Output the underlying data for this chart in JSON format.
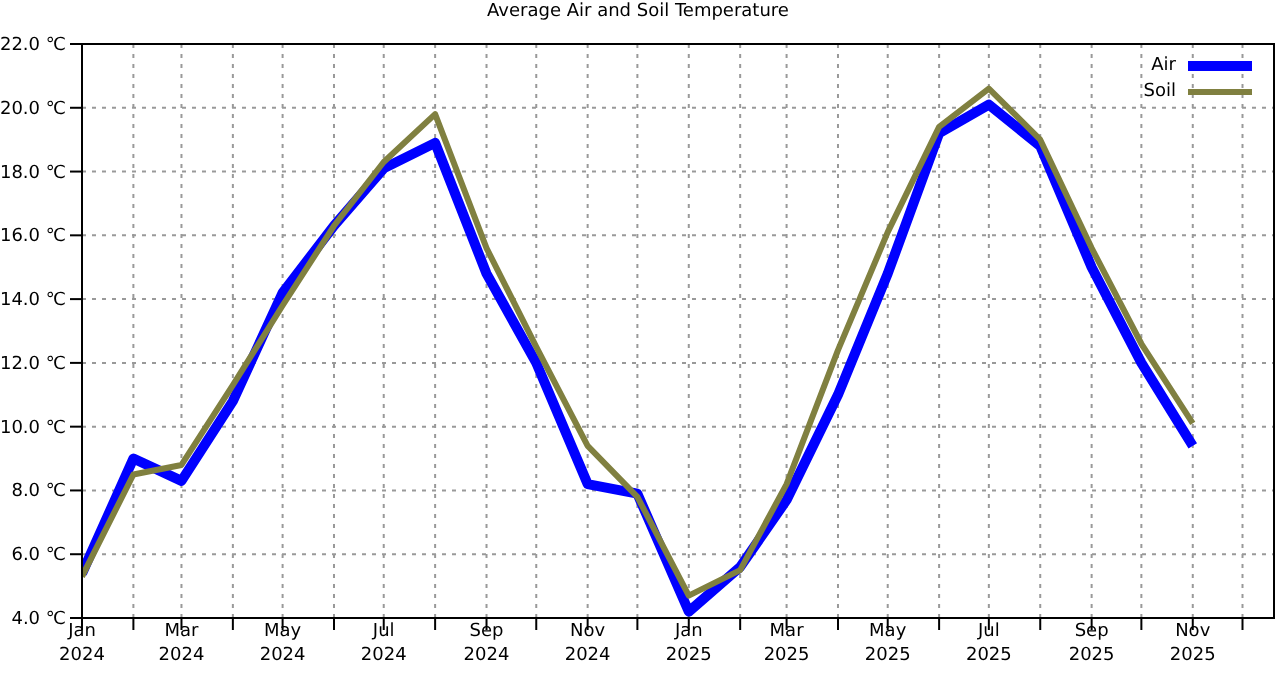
{
  "chart_data": {
    "type": "line",
    "title": "Average Air and Soil Temperature",
    "x": [
      "2024-01",
      "2024-02",
      "2024-03",
      "2024-04",
      "2024-05",
      "2024-06",
      "2024-07",
      "2024-08",
      "2024-09",
      "2024-10",
      "2024-11",
      "2024-12",
      "2025-01",
      "2025-02",
      "2025-03",
      "2025-04",
      "2025-05",
      "2025-06",
      "2025-07",
      "2025-08",
      "2025-09",
      "2025-10",
      "2025-11"
    ],
    "series": [
      {
        "name": "Air",
        "color": "#0000ff",
        "values": [
          5.4,
          9.0,
          8.3,
          10.8,
          14.2,
          16.3,
          18.1,
          18.9,
          14.8,
          12.0,
          8.2,
          7.9,
          4.2,
          5.6,
          7.7,
          11.0,
          14.8,
          19.2,
          20.1,
          18.8,
          15.0,
          12.0,
          9.4
        ]
      },
      {
        "name": "Soil",
        "color": "#808040",
        "values": [
          5.3,
          8.5,
          8.8,
          11.3,
          13.8,
          16.3,
          18.3,
          19.8,
          15.6,
          12.5,
          9.4,
          7.8,
          4.7,
          5.5,
          8.2,
          12.4,
          16.1,
          19.4,
          20.6,
          19.0,
          15.6,
          12.6,
          10.1
        ]
      }
    ],
    "xlim": [
      "2024-01-01",
      "2025-12-20"
    ],
    "xticks": [
      {
        "value": "2024-01",
        "label": "Jan\n2024"
      },
      {
        "value": "2024-02",
        "label": null
      },
      {
        "value": "2024-03",
        "label": "Mar\n2024"
      },
      {
        "value": "2024-04",
        "label": null
      },
      {
        "value": "2024-05",
        "label": "May\n2024"
      },
      {
        "value": "2024-06",
        "label": null
      },
      {
        "value": "2024-07",
        "label": "Jul\n2024"
      },
      {
        "value": "2024-08",
        "label": null
      },
      {
        "value": "2024-09",
        "label": "Sep\n2024"
      },
      {
        "value": "2024-10",
        "label": null
      },
      {
        "value": "2024-11",
        "label": "Nov\n2024"
      },
      {
        "value": "2024-12",
        "label": null
      },
      {
        "value": "2025-01",
        "label": "Jan\n2025"
      },
      {
        "value": "2025-02",
        "label": null
      },
      {
        "value": "2025-03",
        "label": "Mar\n2025"
      },
      {
        "value": "2025-04",
        "label": null
      },
      {
        "value": "2025-05",
        "label": "May\n2025"
      },
      {
        "value": "2025-06",
        "label": null
      },
      {
        "value": "2025-07",
        "label": "Jul\n2025"
      },
      {
        "value": "2025-08",
        "label": null
      },
      {
        "value": "2025-09",
        "label": "Sep\n2025"
      },
      {
        "value": "2025-10",
        "label": null
      },
      {
        "value": "2025-11",
        "label": "Nov\n2025"
      },
      {
        "value": "2025-12",
        "label": null
      }
    ],
    "ylim": [
      4,
      22
    ],
    "yticks": [
      {
        "value": 4,
        "label": "4.0 ℃"
      },
      {
        "value": 6,
        "label": "6.0 ℃"
      },
      {
        "value": 8,
        "label": "8.0 ℃"
      },
      {
        "value": 10,
        "label": "10.0 ℃"
      },
      {
        "value": 12,
        "label": "12.0 ℃"
      },
      {
        "value": 14,
        "label": "14.0 ℃"
      },
      {
        "value": 16,
        "label": "16.0 ℃"
      },
      {
        "value": 18,
        "label": "18.0 ℃"
      },
      {
        "value": 20,
        "label": "20.0 ℃"
      },
      {
        "value": 22,
        "label": "22.0 ℃"
      }
    ],
    "grid": true,
    "legend": "top right",
    "marker": "none",
    "line_style": "solid"
  }
}
